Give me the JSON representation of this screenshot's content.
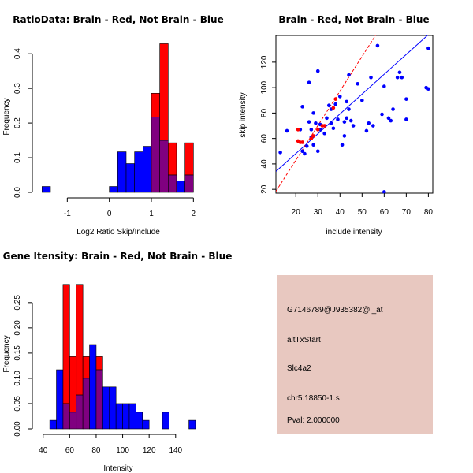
{
  "colors": {
    "red": "#ff0000",
    "blue": "#0000ff",
    "overlap": "#800080",
    "panel_bg": "#e8c8c0",
    "pval_text": "#b00000"
  },
  "chart_data": [
    {
      "type": "histogram",
      "title": "RatioData: Brain - Red, Not Brain - Blue",
      "xlabel": "Log2 Ratio Skip/Include",
      "ylabel": "Frequency",
      "xlim": [
        -1.7,
        2.05
      ],
      "ylim": [
        0,
        0.43
      ],
      "xticks": [
        -1,
        0,
        1,
        2
      ],
      "yticks": [
        0.0,
        0.1,
        0.2,
        0.3,
        0.4
      ],
      "bin_width": 0.2,
      "bin_starts": [
        -1.6,
        -1.4,
        -1.2,
        -1.0,
        -0.8,
        -0.6,
        -0.4,
        -0.2,
        0.0,
        0.2,
        0.4,
        0.6,
        0.8,
        1.0,
        1.2,
        1.4,
        1.6,
        1.8
      ],
      "series": [
        {
          "name": "Brain",
          "color": "red",
          "values": [
            0,
            0,
            0,
            0,
            0,
            0,
            0,
            0,
            0,
            0,
            0,
            0,
            0,
            0.286,
            0.429,
            0.143,
            0,
            0.143
          ]
        },
        {
          "name": "Not Brain",
          "color": "blue",
          "values": [
            0.017,
            0,
            0,
            0,
            0,
            0,
            0,
            0,
            0.017,
            0.117,
            0.083,
            0.117,
            0.133,
            0.217,
            0.15,
            0.05,
            0.033,
            0.05
          ]
        }
      ]
    },
    {
      "type": "scatter",
      "title": "Brain - Red, Not Brain - Blue",
      "xlabel": "include intensity",
      "ylabel": "skip intensity",
      "xlim": [
        11,
        82
      ],
      "ylim": [
        17,
        141
      ],
      "xticks": [
        20,
        30,
        40,
        50,
        60,
        70,
        80
      ],
      "yticks": [
        20,
        40,
        60,
        80,
        100,
        120
      ],
      "lines": [
        {
          "name": "blue-fit",
          "color": "blue",
          "slope": 1.56,
          "intercept": 16.9
        },
        {
          "name": "red-fit",
          "color": "red",
          "slope": 2.72,
          "intercept": -11.5,
          "dashed": true
        }
      ],
      "series": [
        {
          "name": "Not Brain",
          "color": "blue",
          "points": [
            [
              13,
              49
            ],
            [
              16,
              66
            ],
            [
              22,
              67
            ],
            [
              23,
              85
            ],
            [
              23,
              50
            ],
            [
              24,
              48
            ],
            [
              25,
              54
            ],
            [
              26,
              73
            ],
            [
              26,
              104
            ],
            [
              27,
              61
            ],
            [
              27,
              67
            ],
            [
              28,
              55
            ],
            [
              28,
              80
            ],
            [
              29,
              72
            ],
            [
              30,
              50
            ],
            [
              30,
              113
            ],
            [
              31,
              71
            ],
            [
              31,
              67
            ],
            [
              33,
              64
            ],
            [
              34,
              76
            ],
            [
              35,
              86
            ],
            [
              36,
              83
            ],
            [
              36,
              72
            ],
            [
              37,
              68
            ],
            [
              38,
              87
            ],
            [
              39,
              75
            ],
            [
              40,
              93
            ],
            [
              41,
              55
            ],
            [
              42,
              62
            ],
            [
              42,
              73
            ],
            [
              43,
              76
            ],
            [
              43,
              89
            ],
            [
              44,
              110
            ],
            [
              44,
              83
            ],
            [
              45,
              74
            ],
            [
              46,
              70
            ],
            [
              48,
              103
            ],
            [
              50,
              90
            ],
            [
              52,
              66
            ],
            [
              53,
              72
            ],
            [
              54,
              108
            ],
            [
              55,
              70
            ],
            [
              57,
              133
            ],
            [
              59,
              79
            ],
            [
              60,
              101
            ],
            [
              60,
              18
            ],
            [
              62,
              76
            ],
            [
              63,
              74
            ],
            [
              64,
              83
            ],
            [
              66,
              108
            ],
            [
              67,
              112
            ],
            [
              68,
              108
            ],
            [
              70,
              91
            ],
            [
              70,
              75
            ],
            [
              79,
              100
            ],
            [
              80,
              99
            ],
            [
              80,
              131
            ]
          ]
        },
        {
          "name": "Brain",
          "color": "red",
          "points": [
            [
              21,
              67
            ],
            [
              21,
              58
            ],
            [
              22,
              57
            ],
            [
              23,
              57
            ],
            [
              27,
              60
            ],
            [
              28,
              62
            ],
            [
              30,
              67
            ],
            [
              32,
              70
            ],
            [
              33,
              70
            ],
            [
              37,
              84
            ],
            [
              38,
              91
            ]
          ]
        }
      ]
    },
    {
      "type": "histogram",
      "title": "Gene Itensity: Brain - Red, Not Brain - Blue",
      "xlabel": "Intensity",
      "ylabel": "Frequency",
      "xlim": [
        36,
        155
      ],
      "ylim": [
        0,
        0.295
      ],
      "xticks": [
        40,
        60,
        80,
        100,
        120,
        140
      ],
      "yticks": [
        0.0,
        0.05,
        0.1,
        0.15,
        0.2,
        0.25
      ],
      "bin_width": 5,
      "bin_starts": [
        45,
        50,
        55,
        60,
        65,
        70,
        75,
        80,
        85,
        90,
        95,
        100,
        105,
        110,
        115,
        120,
        125,
        130,
        135,
        140,
        145,
        150
      ],
      "series": [
        {
          "name": "Brain",
          "color": "red",
          "values": [
            0,
            0,
            0.286,
            0.143,
            0.286,
            0.143,
            0,
            0.143,
            0,
            0,
            0,
            0,
            0,
            0,
            0,
            0,
            0,
            0,
            0,
            0,
            0,
            0
          ]
        },
        {
          "name": "Not Brain",
          "color": "blue",
          "values": [
            0.017,
            0.117,
            0.05,
            0.033,
            0.067,
            0.1,
            0.167,
            0.117,
            0.083,
            0.083,
            0.05,
            0.05,
            0.05,
            0.033,
            0.017,
            0,
            0,
            0.033,
            0,
            0,
            0,
            0.017
          ]
        }
      ]
    }
  ],
  "info_panel": {
    "probe_id": "G7146789@J935382@i_at",
    "event_type": "altTxStart",
    "gene": "Slc4a2",
    "location": "chr5.18850-1.s",
    "pval": "Pval: 2.000000"
  }
}
